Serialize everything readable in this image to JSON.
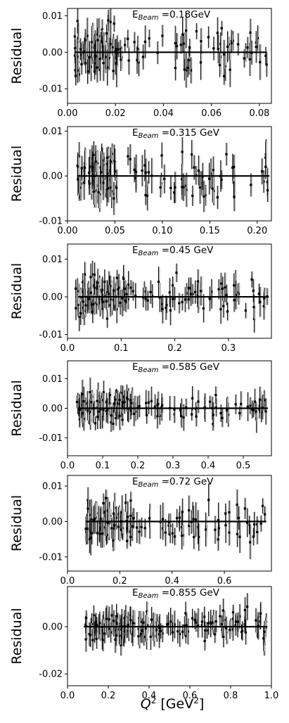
{
  "figure": {
    "xlabel_main": "Q",
    "xlabel_sup": "2",
    "xlabel_unit_pre": " [GeV",
    "xlabel_unit_sup": "2",
    "xlabel_unit_post": "]"
  },
  "chart_data": [
    {
      "type": "scatter",
      "title_pre": "E",
      "title_sub": "Beam",
      "title_post": " =0.18GeV",
      "ylabel": "Residual",
      "xlim": [
        0,
        0.085
      ],
      "ylim": [
        -0.014,
        0.012
      ],
      "xticks": [
        0.0,
        0.02,
        0.04,
        0.06,
        0.08
      ],
      "xtick_labels": [
        "0.00",
        "0.02",
        "0.04",
        "0.06",
        "0.08"
      ],
      "yticks": [
        -0.01,
        0.0,
        0.01
      ],
      "ytick_labels": [
        "-0.01",
        "0.00",
        "0.01"
      ],
      "fit_line": {
        "x": [
          0.003,
          0.083
        ],
        "y": [
          0,
          0
        ]
      },
      "dense_region": [
        0.003,
        0.021
      ],
      "sparse_region": [
        0.021,
        0.083
      ],
      "n_points": 160,
      "error": [
        0.002,
        0.005
      ],
      "spread": 0.008
    },
    {
      "type": "scatter",
      "title_pre": "E",
      "title_sub": "Beam",
      "title_post": " =0.315 GeV",
      "ylabel": "Residual",
      "xlim": [
        0,
        0.215
      ],
      "ylim": [
        -0.01,
        0.011
      ],
      "xticks": [
        0.0,
        0.05,
        0.1,
        0.15,
        0.2
      ],
      "xtick_labels": [
        "0.00",
        "0.05",
        "0.10",
        "0.15",
        "0.20"
      ],
      "yticks": [
        -0.01,
        0.0,
        0.01
      ],
      "ytick_labels": [
        "-0.01",
        "0.00",
        "0.01"
      ],
      "fit_line": {
        "x": [
          0.01,
          0.213
        ],
        "y": [
          0,
          0
        ]
      },
      "dense_region": [
        0.01,
        0.05
      ],
      "sparse_region": [
        0.05,
        0.213
      ],
      "n_points": 150,
      "error": [
        0.002,
        0.004
      ],
      "spread": 0.006
    },
    {
      "type": "scatter",
      "title_pre": "E",
      "title_sub": "Beam",
      "title_post": " =0.45 GeV",
      "ylabel": "Residual",
      "xlim": [
        0,
        0.38
      ],
      "ylim": [
        -0.011,
        0.014
      ],
      "xticks": [
        0.0,
        0.1,
        0.2,
        0.3
      ],
      "xtick_labels": [
        "0.0",
        "0.1",
        "0.2",
        "0.3"
      ],
      "yticks": [
        -0.01,
        0.0,
        0.01
      ],
      "ytick_labels": [
        "-0.01",
        "0.00",
        "0.01"
      ],
      "fit_line": {
        "x": [
          0.02,
          0.375
        ],
        "y": [
          0,
          0
        ]
      },
      "dense_region": [
        0.015,
        0.115
      ],
      "sparse_region": [
        0.115,
        0.375
      ],
      "n_points": 170,
      "error": [
        0.002,
        0.004
      ],
      "spread": 0.006
    },
    {
      "type": "scatter",
      "title_pre": "E",
      "title_sub": "Beam",
      "title_post": " =0.585 GeV",
      "ylabel": "Residual",
      "xlim": [
        0,
        0.58
      ],
      "ylim": [
        -0.016,
        0.016
      ],
      "xticks": [
        0.0,
        0.1,
        0.2,
        0.3,
        0.4,
        0.5
      ],
      "xtick_labels": [
        "0.0",
        "0.1",
        "0.2",
        "0.3",
        "0.4",
        "0.5"
      ],
      "yticks": [
        -0.01,
        0.0,
        0.01
      ],
      "ytick_labels": [
        "-0.01",
        "0.00",
        "0.01"
      ],
      "fit_line": {
        "x": [
          0.03,
          0.57
        ],
        "y": [
          0,
          0
        ]
      },
      "dense_region": [
        0.025,
        0.18
      ],
      "sparse_region": [
        0.18,
        0.57
      ],
      "n_points": 160,
      "error": [
        0.002,
        0.005
      ],
      "spread": 0.006
    },
    {
      "type": "scatter",
      "title_pre": "E",
      "title_sub": "Beam",
      "title_post": " =0.72 GeV",
      "ylabel": "Residual",
      "xlim": [
        0,
        0.78
      ],
      "ylim": [
        -0.014,
        0.013
      ],
      "xticks": [
        0.0,
        0.2,
        0.4,
        0.6
      ],
      "xtick_labels": [
        "0.0",
        "0.2",
        "0.4",
        "0.6"
      ],
      "yticks": [
        -0.01,
        0.0,
        0.01
      ],
      "ytick_labels": [
        "-0.01",
        "0.00",
        "0.01"
      ],
      "fit_line": {
        "x": [
          0.07,
          0.76
        ],
        "y": [
          0,
          0
        ]
      },
      "dense_region": [
        0.07,
        0.25
      ],
      "sparse_region": [
        0.25,
        0.76
      ],
      "n_points": 150,
      "error": [
        0.002,
        0.005
      ],
      "spread": 0.007
    },
    {
      "type": "scatter",
      "title_pre": "E",
      "title_sub": "Beam",
      "title_post": " =0.855 GeV",
      "ylabel": "Residual",
      "xlim": [
        0,
        1.0
      ],
      "ylim": [
        -0.025,
        0.017
      ],
      "xticks": [
        0.0,
        0.2,
        0.4,
        0.6,
        0.8,
        1.0
      ],
      "xtick_labels": [
        "0.0",
        "0.2",
        "0.4",
        "0.6",
        "0.8",
        "1.0"
      ],
      "yticks": [
        -0.02,
        0.0
      ],
      "ytick_labels": [
        "-0.02",
        "0.00"
      ],
      "fit_line": {
        "x": [
          0.08,
          0.98
        ],
        "y": [
          0,
          0
        ]
      },
      "dense_region": [
        0.08,
        0.45
      ],
      "sparse_region": [
        0.45,
        0.98
      ],
      "n_points": 190,
      "error": [
        0.003,
        0.006
      ],
      "spread": 0.008
    }
  ]
}
